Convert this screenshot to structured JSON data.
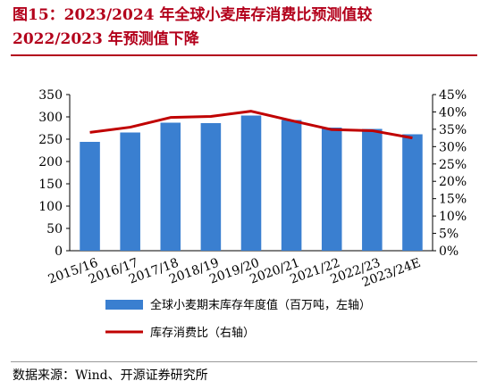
{
  "title": {
    "line1": "图15：2023/2024  年全球小麦库存消费比预测值较",
    "line2": "2022/2023 年预测值下降"
  },
  "source": "数据来源：Wind、开源证券研究所",
  "chart_data": {
    "type": "bar",
    "title": "",
    "categories": [
      "2015/16",
      "2016/17",
      "2017/18",
      "2018/19",
      "2019/20",
      "2020/21",
      "2021/22",
      "2022/23",
      "2023/24E"
    ],
    "series": [
      {
        "name": "全球小麦期末库存年度值（百万吨，左轴）",
        "type": "bar",
        "axis": "left",
        "color": "#3a7fd0",
        "values": [
          244,
          265,
          287,
          286,
          303,
          293,
          276,
          273,
          261
        ]
      },
      {
        "name": "库存消费比（右轴）",
        "type": "line",
        "axis": "right",
        "color": "#c00000",
        "values": [
          34.1,
          35.6,
          38.4,
          38.7,
          40.2,
          37.5,
          34.9,
          34.6,
          32.5
        ]
      }
    ],
    "y_left": {
      "min": 0,
      "max": 350,
      "ticks": [
        "0",
        "50",
        "100",
        "150",
        "200",
        "250",
        "300",
        "350"
      ]
    },
    "y_right": {
      "min": 0,
      "max": 45,
      "ticks": [
        "0%",
        "5%",
        "10%",
        "15%",
        "20%",
        "25%",
        "30%",
        "35%",
        "40%",
        "45%"
      ]
    },
    "grid": false,
    "legend_position": "bottom"
  }
}
